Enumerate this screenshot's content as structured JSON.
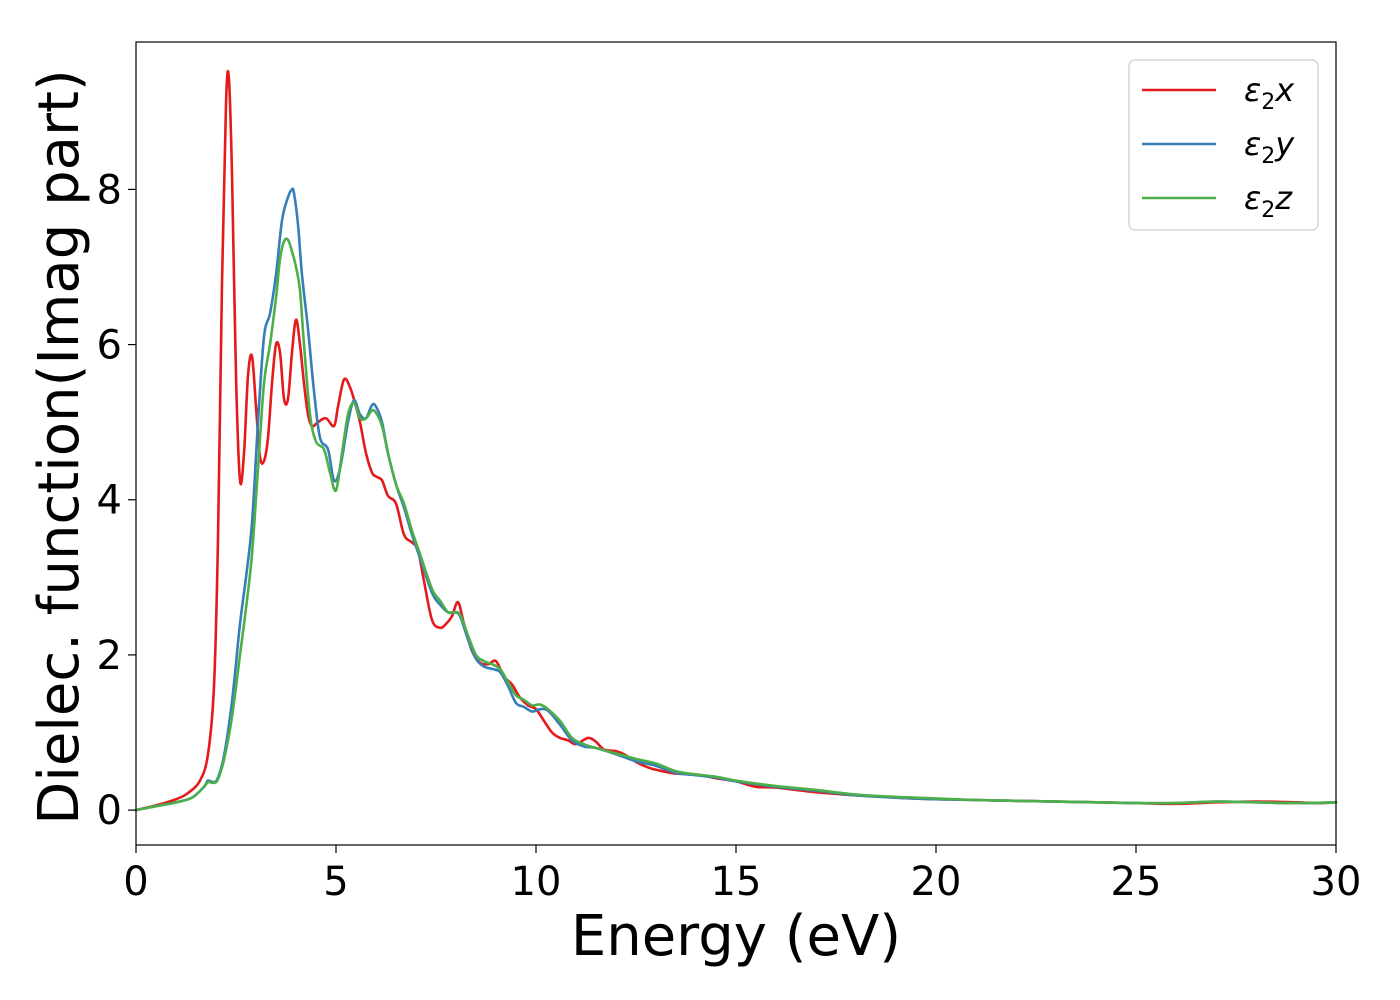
{
  "chart_data": {
    "type": "line",
    "xlabel": "Energy (eV)",
    "ylabel": "Dielec. function(Imag part)",
    "xlim": [
      0,
      30
    ],
    "ylim": [
      -0.45,
      9.9
    ],
    "xticks": [
      0,
      5,
      10,
      15,
      20,
      25,
      30
    ],
    "yticks": [
      0,
      2,
      4,
      6,
      8
    ],
    "grid": false,
    "legend_position": "top-right",
    "series": [
      {
        "name": "ε₂x",
        "legend_base": "ε",
        "legend_sub": "2",
        "legend_suffix": "x",
        "color": "#e41a1c",
        "x": [
          0,
          0.5,
          1.0,
          1.3,
          1.6,
          1.8,
          1.95,
          2.05,
          2.15,
          2.25,
          2.32,
          2.4,
          2.5,
          2.6,
          2.7,
          2.8,
          2.9,
          3.0,
          3.1,
          3.2,
          3.3,
          3.4,
          3.5,
          3.6,
          3.7,
          3.8,
          3.9,
          4.0,
          4.1,
          4.2,
          4.3,
          4.4,
          4.55,
          4.75,
          4.95,
          5.05,
          5.2,
          5.35,
          5.5,
          5.6,
          5.75,
          5.9,
          6.0,
          6.15,
          6.3,
          6.5,
          6.7,
          6.9,
          7.05,
          7.2,
          7.4,
          7.6,
          7.75,
          7.9,
          8.05,
          8.2,
          8.4,
          8.6,
          8.8,
          9.0,
          9.2,
          9.4,
          9.6,
          9.8,
          10.0,
          10.2,
          10.4,
          10.6,
          10.8,
          11.0,
          11.3,
          11.5,
          11.7,
          12.0,
          12.2,
          12.5,
          12.8,
          13.0,
          13.5,
          14.0,
          14.5,
          15.0,
          15.5,
          16.0,
          17.0,
          18.0,
          18.5,
          19.0,
          20.0,
          21.0,
          22.0,
          23.0,
          24.0,
          25.0,
          26.0,
          27.0,
          28.0,
          29.0,
          29.5,
          30.0
        ],
        "values": [
          0,
          0.06,
          0.14,
          0.22,
          0.38,
          0.72,
          1.6,
          3.5,
          6.8,
          9.1,
          9.45,
          8.2,
          5.6,
          4.25,
          4.6,
          5.6,
          5.85,
          5.2,
          4.55,
          4.5,
          4.8,
          5.5,
          6.0,
          5.9,
          5.3,
          5.3,
          5.9,
          6.32,
          6.0,
          5.5,
          5.1,
          4.95,
          5.0,
          5.05,
          4.95,
          5.2,
          5.55,
          5.45,
          5.2,
          5.0,
          4.6,
          4.35,
          4.3,
          4.25,
          4.05,
          3.95,
          3.55,
          3.45,
          3.35,
          2.95,
          2.45,
          2.35,
          2.4,
          2.5,
          2.68,
          2.4,
          2.05,
          1.9,
          1.88,
          1.92,
          1.72,
          1.62,
          1.45,
          1.35,
          1.3,
          1.15,
          1.0,
          0.93,
          0.9,
          0.85,
          0.93,
          0.88,
          0.78,
          0.76,
          0.72,
          0.62,
          0.55,
          0.52,
          0.47,
          0.46,
          0.41,
          0.37,
          0.3,
          0.29,
          0.23,
          0.19,
          0.18,
          0.16,
          0.14,
          0.13,
          0.12,
          0.11,
          0.1,
          0.09,
          0.08,
          0.1,
          0.11,
          0.1,
          0.09,
          0.1
        ]
      },
      {
        "name": "ε₂y",
        "legend_base": "ε",
        "legend_sub": "2",
        "legend_suffix": "y",
        "color": "#377eb8",
        "x": [
          0,
          0.5,
          1.0,
          1.4,
          1.7,
          1.8,
          1.95,
          2.05,
          2.2,
          2.4,
          2.6,
          2.75,
          2.9,
          3.05,
          3.2,
          3.35,
          3.5,
          3.65,
          3.8,
          3.9,
          3.95,
          4.05,
          4.15,
          4.3,
          4.45,
          4.6,
          4.8,
          4.95,
          5.1,
          5.3,
          5.45,
          5.6,
          5.75,
          5.9,
          6.0,
          6.15,
          6.3,
          6.5,
          6.7,
          6.9,
          7.1,
          7.4,
          7.6,
          7.8,
          7.95,
          8.1,
          8.3,
          8.5,
          8.7,
          8.9,
          9.1,
          9.3,
          9.5,
          9.7,
          9.9,
          10.1,
          10.3,
          10.6,
          10.9,
          11.2,
          11.5,
          12.0,
          12.5,
          13.0,
          13.5,
          14.0,
          14.5,
          15.0,
          16.0,
          17.0,
          18.0,
          19.0,
          20.0,
          21.0,
          22.0,
          23.0,
          24.0,
          25.0,
          26.0,
          27.0,
          28.0,
          29.0,
          30.0
        ],
        "values": [
          0,
          0.05,
          0.1,
          0.16,
          0.3,
          0.38,
          0.36,
          0.42,
          0.7,
          1.4,
          2.4,
          3.0,
          3.7,
          5.0,
          6.1,
          6.4,
          6.9,
          7.6,
          7.9,
          8.0,
          7.95,
          7.55,
          6.9,
          6.2,
          5.4,
          4.8,
          4.65,
          4.25,
          4.4,
          5.0,
          5.28,
          5.1,
          5.05,
          5.22,
          5.2,
          5.0,
          4.6,
          4.2,
          3.9,
          3.55,
          3.25,
          2.8,
          2.65,
          2.55,
          2.55,
          2.5,
          2.2,
          1.95,
          1.85,
          1.82,
          1.78,
          1.6,
          1.38,
          1.33,
          1.27,
          1.3,
          1.28,
          1.1,
          0.9,
          0.82,
          0.8,
          0.72,
          0.63,
          0.57,
          0.48,
          0.45,
          0.42,
          0.37,
          0.3,
          0.25,
          0.19,
          0.16,
          0.14,
          0.13,
          0.12,
          0.11,
          0.1,
          0.09,
          0.09,
          0.11,
          0.1,
          0.09,
          0.1
        ]
      },
      {
        "name": "ε₂z",
        "legend_base": "ε",
        "legend_sub": "2",
        "legend_suffix": "z",
        "color": "#4daf4a",
        "x": [
          0,
          0.5,
          1.0,
          1.4,
          1.7,
          1.8,
          1.95,
          2.05,
          2.2,
          2.4,
          2.6,
          2.75,
          2.9,
          3.05,
          3.2,
          3.35,
          3.5,
          3.6,
          3.7,
          3.8,
          3.9,
          4.0,
          4.1,
          4.2,
          4.35,
          4.5,
          4.7,
          4.85,
          5.0,
          5.15,
          5.3,
          5.45,
          5.6,
          5.75,
          5.9,
          6.0,
          6.15,
          6.3,
          6.5,
          6.7,
          6.9,
          7.1,
          7.4,
          7.6,
          7.8,
          7.95,
          8.1,
          8.3,
          8.5,
          8.7,
          8.9,
          9.1,
          9.3,
          9.5,
          9.7,
          9.9,
          10.1,
          10.3,
          10.6,
          10.9,
          11.2,
          11.5,
          12.0,
          12.5,
          13.0,
          13.5,
          14.0,
          14.5,
          15.0,
          16.0,
          17.0,
          18.0,
          19.0,
          20.0,
          21.0,
          22.0,
          23.0,
          24.0,
          25.0,
          26.0,
          27.0,
          28.0,
          29.0,
          30.0
        ],
        "values": [
          0,
          0.05,
          0.1,
          0.16,
          0.3,
          0.36,
          0.35,
          0.4,
          0.65,
          1.2,
          2.0,
          2.6,
          3.3,
          4.4,
          5.5,
          6.0,
          6.6,
          7.1,
          7.33,
          7.35,
          7.2,
          7.0,
          6.7,
          6.0,
          5.1,
          4.75,
          4.65,
          4.35,
          4.12,
          4.6,
          5.1,
          5.25,
          5.05,
          5.05,
          5.15,
          5.12,
          4.95,
          4.6,
          4.2,
          3.95,
          3.6,
          3.3,
          2.85,
          2.7,
          2.55,
          2.55,
          2.52,
          2.25,
          2.0,
          1.92,
          1.88,
          1.82,
          1.65,
          1.48,
          1.42,
          1.35,
          1.36,
          1.3,
          1.15,
          0.93,
          0.85,
          0.8,
          0.73,
          0.66,
          0.6,
          0.5,
          0.46,
          0.43,
          0.38,
          0.31,
          0.26,
          0.2,
          0.17,
          0.15,
          0.13,
          0.12,
          0.11,
          0.1,
          0.09,
          0.09,
          0.11,
          0.1,
          0.09,
          0.1
        ]
      }
    ]
  }
}
